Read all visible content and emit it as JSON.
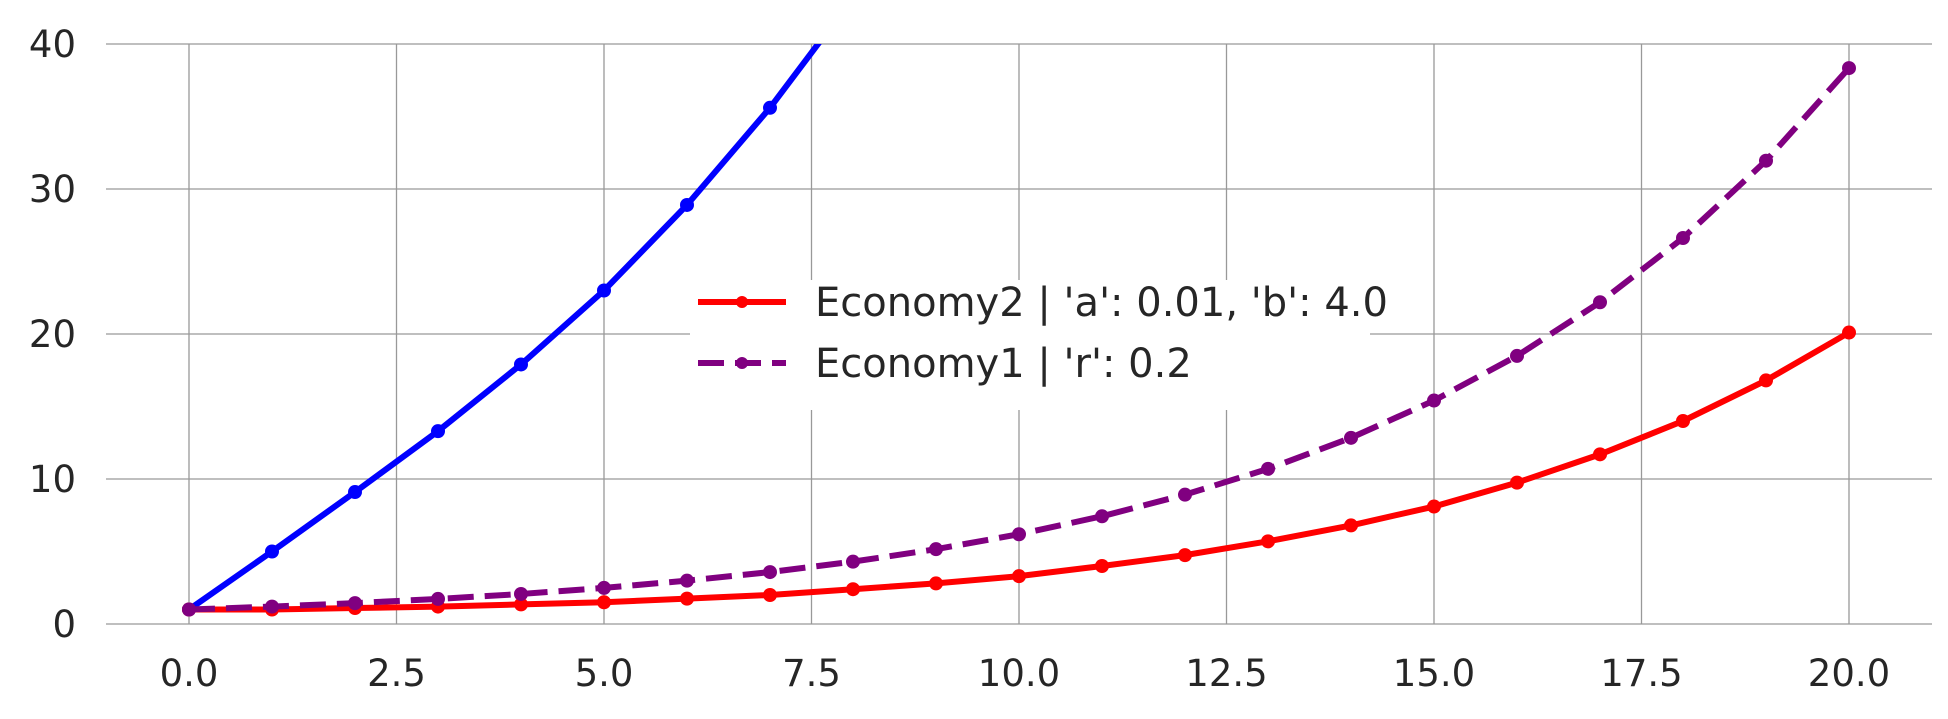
{
  "chart_data": {
    "type": "line",
    "title": "",
    "xlabel": "",
    "ylabel": "",
    "xlim": [
      -1.0,
      21.0
    ],
    "ylim": [
      0,
      40
    ],
    "xticks": [
      "0.0",
      "2.5",
      "5.0",
      "7.5",
      "10.0",
      "12.5",
      "15.0",
      "17.5",
      "20.0"
    ],
    "yticks": [
      "0",
      "10",
      "20",
      "30",
      "40"
    ],
    "grid": true,
    "legend_placement": "center",
    "series": [
      {
        "name": "",
        "color": "#0000ff",
        "dash": "solid",
        "x": [
          0,
          1,
          2,
          3,
          4,
          5,
          6,
          7,
          8
        ],
        "y": [
          1.0,
          5.0,
          9.1,
          13.3,
          17.9,
          23.0,
          28.9,
          35.6,
          43.2
        ]
      },
      {
        "name": "Economy2 | 'a': 0.01, 'b': 4.0",
        "color": "#ff0000",
        "dash": "solid",
        "x": [
          0,
          1,
          2,
          3,
          4,
          5,
          6,
          7,
          8,
          9,
          10,
          11,
          12,
          13,
          14,
          15,
          16,
          17,
          18,
          19,
          20
        ],
        "y": [
          1.0,
          1.0,
          1.1,
          1.2,
          1.35,
          1.5,
          1.75,
          2.0,
          2.4,
          2.8,
          3.3,
          4.0,
          4.75,
          5.7,
          6.8,
          8.1,
          9.75,
          11.7,
          14.0,
          16.8,
          20.1
        ]
      },
      {
        "name": "Economy1 | 'r': 0.2",
        "color": "#800080",
        "dash": "dashed",
        "x": [
          0,
          1,
          2,
          3,
          4,
          5,
          6,
          7,
          8,
          9,
          10,
          11,
          12,
          13,
          14,
          15,
          16,
          17,
          18,
          19,
          20
        ],
        "y": [
          1.0,
          1.2,
          1.44,
          1.73,
          2.07,
          2.49,
          2.99,
          3.58,
          4.3,
          5.16,
          6.19,
          7.43,
          8.92,
          10.7,
          12.84,
          15.41,
          18.49,
          22.19,
          26.62,
          31.95,
          38.34
        ]
      }
    ]
  }
}
